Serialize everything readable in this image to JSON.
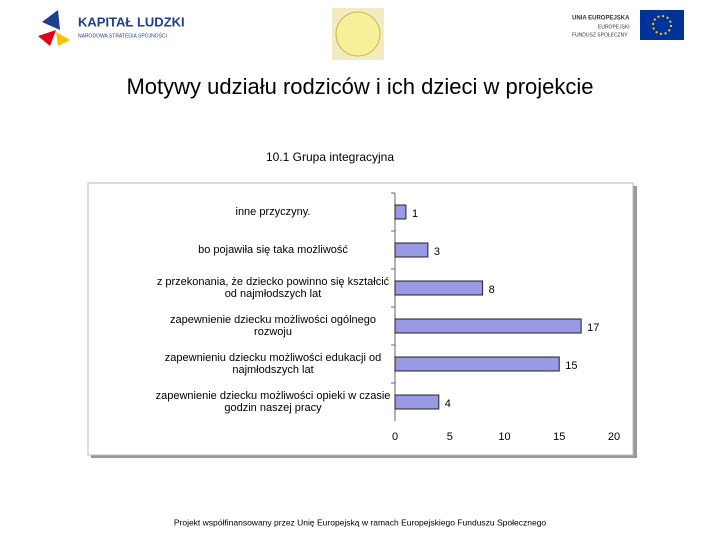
{
  "header": {
    "kl_title": "KAPITAŁ LUDZKI",
    "kl_subtitle": "NARODOWA STRATEGIA SPÓJNOŚCI",
    "eu_line1": "UNIA EUROPEJSKA",
    "eu_line2": "EUROPEJSKI",
    "eu_line3": "FUNDUSZ SPOŁECZNY"
  },
  "title": "Motywy udziału rodziców i ich dzieci w projekcie",
  "chart_data": {
    "type": "bar",
    "orientation": "horizontal",
    "title": "10.1 Grupa integracyjna",
    "categories": [
      "inne przyczyny.",
      "bo pojawiła się taka możliwość",
      "z przekonania, że dziecko powinno się kształcić od najmłodszych lat",
      "zapewnienie dziecku możliwości ogólnego rozwoju",
      "zapewnieniu dziecku możliwości edukacji od najmłodszych lat",
      "zapewnienie dziecku możliwości opieki w czasie godzin naszej pracy"
    ],
    "values": [
      1,
      3,
      8,
      17,
      15,
      4
    ],
    "color": "#9999e6",
    "xlim": [
      0,
      20
    ],
    "xticks": [
      0,
      5,
      10,
      15,
      20
    ],
    "grid": false
  },
  "footer": "Projekt współfinansowany przez Unię Europejską w ramach Europejskiego Funduszu Społecznego"
}
